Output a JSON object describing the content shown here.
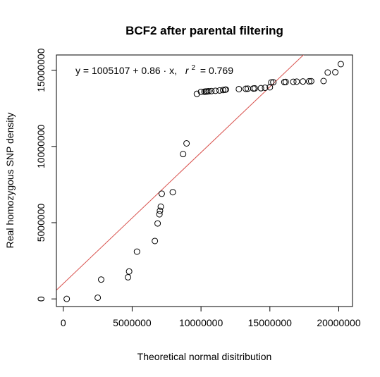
{
  "chart_data": {
    "type": "scatter",
    "title": "BCF2 after parental filtering",
    "xlabel": "Theoretical normal disitribution",
    "ylabel": "Real homozygous SNP density",
    "xlim": [
      -500000,
      21000000
    ],
    "ylim": [
      -500000,
      16000000
    ],
    "x_ticks": [
      0,
      5000000,
      10000000,
      15000000,
      20000000
    ],
    "x_tick_labels": [
      "0",
      "5000000",
      "10000000",
      "15000000",
      "20000000"
    ],
    "y_ticks": [
      0,
      5000000,
      10000000,
      15000000
    ],
    "y_tick_labels": [
      "0",
      "5000000",
      "10000000",
      "15000000"
    ],
    "annotation": {
      "equation": "y = 1005107 + 0.86 · x,",
      "r_squared_label": "r",
      "r_squared_exponent": "2",
      "r_squared_value": "= 0.769"
    },
    "regression_line": {
      "intercept": 1005107,
      "slope": 0.86,
      "color": "#d9534f"
    },
    "point_color": "#000000",
    "points": {
      "x": [
        250000,
        2500000,
        2750000,
        4700000,
        4780000,
        5350000,
        6650000,
        6850000,
        6980000,
        7020000,
        7080000,
        7150000,
        7950000,
        8700000,
        8950000,
        9700000,
        10000000,
        10250000,
        10350000,
        10450000,
        10550000,
        10750000,
        11050000,
        11350000,
        11600000,
        11750000,
        11800000,
        12750000,
        13250000,
        13400000,
        13800000,
        13900000,
        14350000,
        14650000,
        15000000,
        15100000,
        15250000,
        16050000,
        16150000,
        16700000,
        16950000,
        17400000,
        17850000,
        18000000,
        18900000,
        19200000,
        19750000,
        20150000
      ],
      "y": [
        0,
        80000,
        1270000,
        1420000,
        1800000,
        3100000,
        3800000,
        4950000,
        5550000,
        5780000,
        6050000,
        6900000,
        7000000,
        9500000,
        10200000,
        13450000,
        13580000,
        13590000,
        13600000,
        13610000,
        13620000,
        13630000,
        13650000,
        13670000,
        13700000,
        13720000,
        13730000,
        13760000,
        13780000,
        13790000,
        13800000,
        13810000,
        13820000,
        13850000,
        13880000,
        14200000,
        14210000,
        14220000,
        14230000,
        14240000,
        14250000,
        14260000,
        14270000,
        14280000,
        14290000,
        14850000,
        14870000,
        15400000
      ]
    }
  }
}
